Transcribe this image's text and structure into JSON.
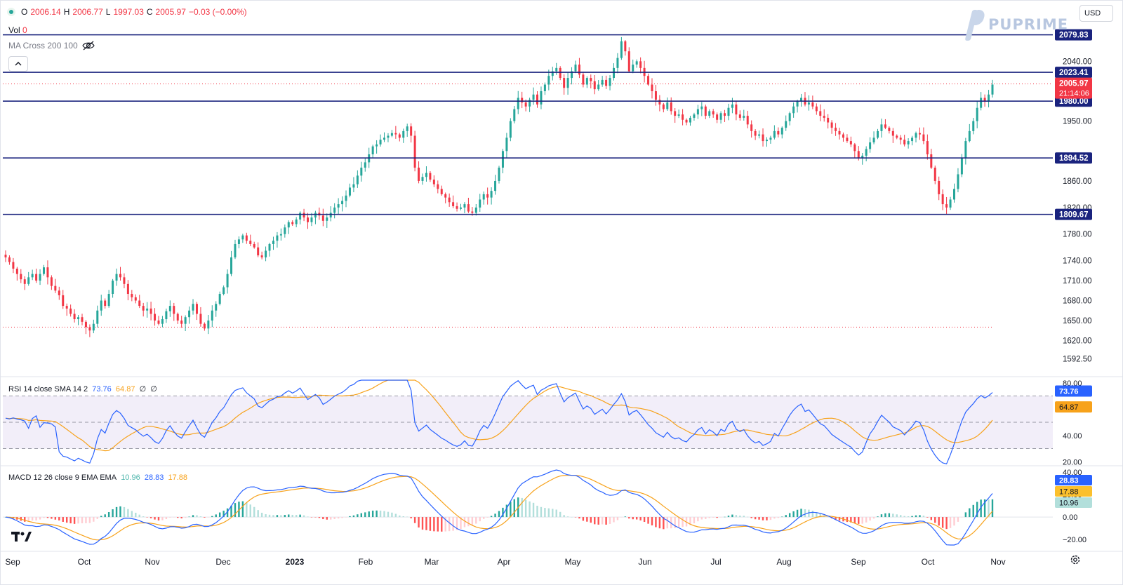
{
  "header": {
    "open_label": "O",
    "open": "2006.14",
    "high_label": "H",
    "high": "2006.77",
    "low_label": "L",
    "low": "1997.03",
    "close_label": "C",
    "close": "2005.97",
    "change": "−0.03 (−0.00%)",
    "vol_label": "Vol",
    "vol_value": "0",
    "ma_label": "MA Cross 200 100",
    "currency": "USD",
    "brand": "PUPRIME"
  },
  "colors": {
    "up": "#26a69a",
    "down": "#f23645",
    "level": "#1a237e",
    "rsi": "#2962ff",
    "rsi_ma": "#f7a21b"
  },
  "chart_data": [
    {
      "type": "candlestick",
      "title": "",
      "x_tick_labels": [
        "Sep",
        "Oct",
        "Nov",
        "Dec",
        "2023",
        "Feb",
        "Mar",
        "Apr",
        "May",
        "Jun",
        "Jul",
        "Aug",
        "Sep",
        "Oct",
        "Nov"
      ],
      "y_tick_labels": [
        "1592.50",
        "1620.00",
        "1650.00",
        "1680.00",
        "1710.00",
        "1740.00",
        "1780.00",
        "1820.00",
        "1860.00",
        "1950.00",
        "2040.00"
      ],
      "ylim": [
        1575,
        2090
      ],
      "series": [
        {
          "x_start": "2022-08-26",
          "approx_closes": [
            1745,
            1738,
            1728,
            1720,
            1712,
            1705,
            1715,
            1720,
            1710,
            1720,
            1730,
            1715,
            1702,
            1695,
            1688,
            1672,
            1668,
            1660,
            1652,
            1655,
            1648,
            1640,
            1635,
            1645,
            1665,
            1680,
            1672,
            1690,
            1710,
            1720,
            1715,
            1705,
            1690,
            1685,
            1680,
            1672,
            1665,
            1668,
            1660,
            1650,
            1645,
            1652,
            1664,
            1672,
            1660,
            1650,
            1645,
            1655,
            1665,
            1675,
            1660,
            1645,
            1638,
            1650,
            1665,
            1675,
            1690,
            1700,
            1720,
            1745,
            1765,
            1772,
            1778,
            1770,
            1765,
            1760,
            1748,
            1745,
            1755,
            1765,
            1770,
            1778,
            1780,
            1790,
            1798,
            1795,
            1802,
            1812,
            1805,
            1798,
            1805,
            1812,
            1808,
            1800,
            1805,
            1812,
            1820,
            1825,
            1830,
            1838,
            1850,
            1855,
            1868,
            1880,
            1888,
            1900,
            1912,
            1915,
            1922,
            1925,
            1928,
            1932,
            1930,
            1925,
            1935,
            1942,
            1928,
            1880,
            1860,
            1866,
            1872,
            1862,
            1855,
            1848,
            1840,
            1835,
            1828,
            1822,
            1818,
            1820,
            1825,
            1814,
            1812,
            1820,
            1832,
            1840,
            1835,
            1845,
            1860,
            1880,
            1905,
            1925,
            1950,
            1968,
            1985,
            1978,
            1972,
            1982,
            1990,
            1975,
            1995,
            2005,
            2018,
            2025,
            2030,
            2015,
            2000,
            2015,
            2025,
            2035,
            2020,
            2005,
            2015,
            2010,
            1998,
            2005,
            2012,
            2003,
            2015,
            2030,
            2045,
            2070,
            2055,
            2025,
            2035,
            2040,
            2030,
            2018,
            2005,
            1995,
            1982,
            1975,
            1968,
            1978,
            1965,
            1958,
            1960,
            1952,
            1948,
            1955,
            1960,
            1968,
            1972,
            1958,
            1965,
            1960,
            1952,
            1962,
            1958,
            1970,
            1975,
            1960,
            1955,
            1958,
            1945,
            1935,
            1928,
            1930,
            1920,
            1922,
            1925,
            1935,
            1930,
            1940,
            1950,
            1962,
            1972,
            1980,
            1985,
            1975,
            1978,
            1972,
            1965,
            1958,
            1955,
            1948,
            1940,
            1935,
            1930,
            1925,
            1920,
            1915,
            1905,
            1895,
            1898,
            1908,
            1918,
            1925,
            1935,
            1945,
            1940,
            1935,
            1928,
            1925,
            1922,
            1915,
            1920,
            1925,
            1932,
            1930,
            1920,
            1900,
            1880,
            1860,
            1840,
            1825,
            1820,
            1832,
            1848,
            1870,
            1895,
            1920,
            1935,
            1950,
            1970,
            1985,
            1980,
            1990,
            2005
          ]
        }
      ],
      "levels": [
        {
          "label": "2079.83",
          "value": 2079.83
        },
        {
          "label": "2023.41",
          "value": 2023.41
        },
        {
          "label": "1980.00",
          "value": 1980.0
        },
        {
          "label": "1894.52",
          "value": 1894.52
        },
        {
          "label": "1809.67",
          "value": 1809.67
        }
      ],
      "last_price": "2005.97",
      "countdown": "21:14:06"
    },
    {
      "type": "line",
      "title": "RSI 14 close SMA 14 2",
      "legend_values": [
        "73.76",
        "64.87",
        "∅",
        "∅"
      ],
      "y_tick_labels": [
        "80.00",
        "60.00",
        "40.00",
        "20.00"
      ],
      "ylim": [
        18,
        82
      ],
      "bands": [
        70,
        50,
        30
      ],
      "series": [
        {
          "name": "RSI",
          "value": "73.76"
        },
        {
          "name": "SMA",
          "value": "64.87"
        }
      ]
    },
    {
      "type": "bar",
      "title": "MACD 12 26 close 9 EMA EMA",
      "legend_values": [
        "10.96",
        "28.83",
        "17.88"
      ],
      "y_tick_labels": [
        "40.00",
        "20.00",
        "0.00",
        "−20.00"
      ],
      "ylim": [
        -25,
        42
      ],
      "series": [
        {
          "name": "Histogram",
          "value": "10.96"
        },
        {
          "name": "MACD",
          "value": "28.83"
        },
        {
          "name": "Signal",
          "value": "17.88"
        }
      ]
    }
  ]
}
